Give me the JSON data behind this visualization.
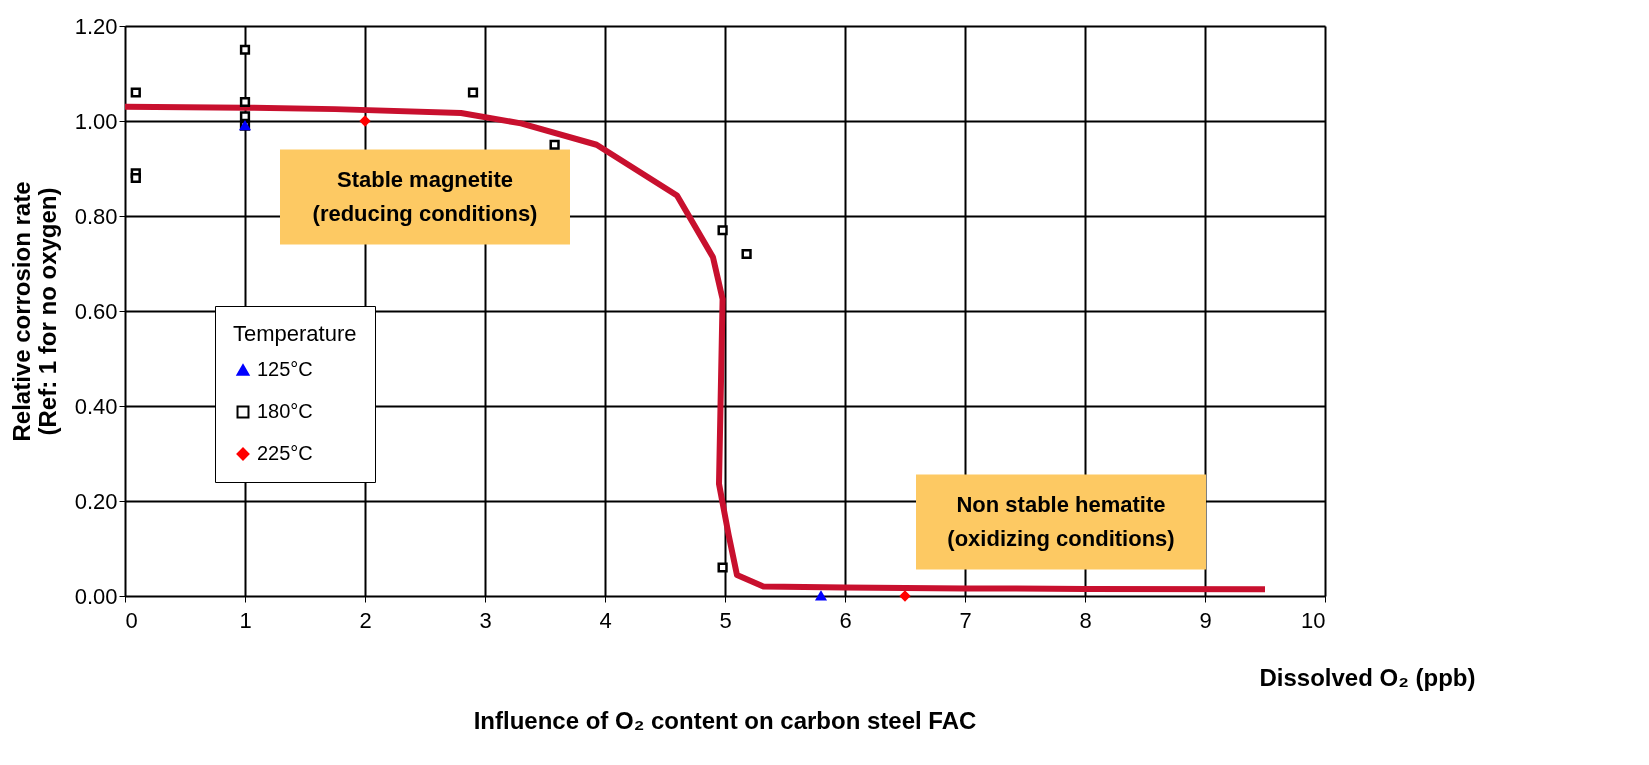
{
  "chart_data": {
    "type": "scatter",
    "title": "Influence of O₂ content on carbon steel FAC",
    "xlabel": "Dissolved O₂ (ppb)",
    "ylabel": "Relative corrosion rate\n(Ref: 1 for no oxygen)",
    "legend_title": "Temperature",
    "xlim": [
      0,
      10
    ],
    "xticks": [
      0,
      1,
      2,
      3,
      4,
      5,
      6,
      7,
      8,
      9,
      10
    ],
    "ylim": [
      0,
      1.2
    ],
    "yticks": [
      {
        "value": 0,
        "label": "0.00"
      },
      {
        "value": 0.2,
        "label": "0.20"
      },
      {
        "value": 0.4,
        "label": "0.40"
      },
      {
        "value": 0.6,
        "label": "0.60"
      },
      {
        "value": 0.8,
        "label": "0.80"
      },
      {
        "value": 1.0,
        "label": "1.00"
      },
      {
        "value": 1.2,
        "label": "1.20"
      }
    ],
    "grid": true,
    "legend": "left",
    "annotations": [
      "Stable magnetite\n(reducing conditions)",
      "Non stable hematite\n(oxidizing conditions)"
    ],
    "series": [
      {
        "type": "line",
        "color": "#c8102e",
        "x": [
          0,
          1,
          1.75,
          2.8,
          3.3,
          3.93,
          4.6,
          4.9,
          4.98,
          4.95,
          5.03,
          5.1,
          5.32,
          6,
          7,
          8,
          9.5
        ],
        "values": [
          1.03,
          1.028,
          1.025,
          1.017,
          0.995,
          0.95,
          0.843,
          0.713,
          0.625,
          0.236,
          0.129,
          0.044,
          0.02,
          0.018,
          0.016,
          0.015,
          0.014
        ]
      },
      {
        "name": "125°C",
        "marker": "triangle",
        "color": "#0000ff",
        "x": [
          1,
          5.8
        ],
        "values": [
          0.99,
          0.0
        ]
      },
      {
        "name": "180°C",
        "marker": "square",
        "color": "#000000",
        "x": [
          0.09,
          0.09,
          0.09,
          1,
          1,
          1,
          1,
          2.9,
          3.58,
          4.98,
          5.18,
          4.98
        ],
        "values": [
          1.06,
          0.89,
          0.88,
          1.15,
          1.04,
          1.01,
          0.99,
          1.06,
          0.95,
          0.77,
          0.72,
          0.06
        ]
      },
      {
        "name": "225°C",
        "marker": "diamond",
        "color": "#ff0000",
        "x": [
          2,
          6.5
        ],
        "values": [
          1.0,
          0.0
        ]
      }
    ]
  }
}
